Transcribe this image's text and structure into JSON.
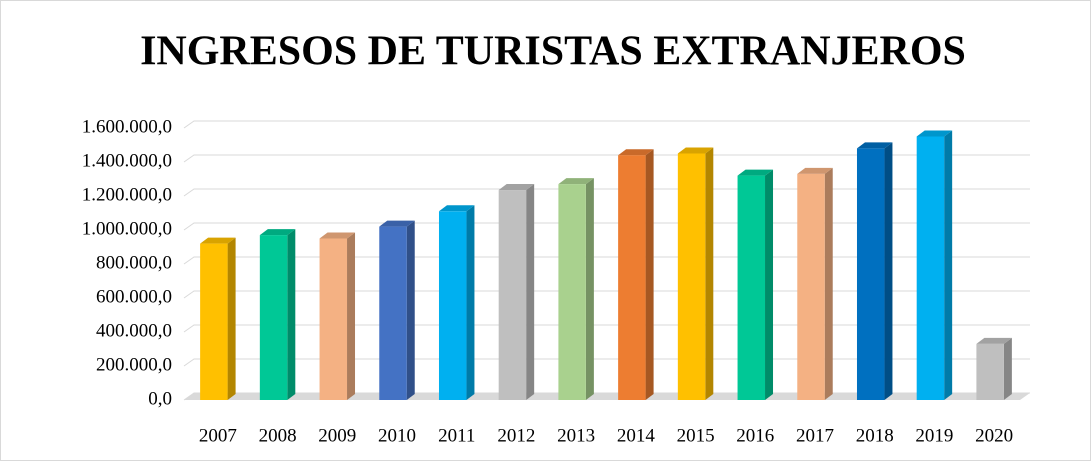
{
  "chart_data": {
    "type": "bar3d",
    "title": "INGRESOS DE TURISTAS EXTRANJEROS",
    "categories": [
      "2007",
      "2008",
      "2009",
      "2010",
      "2011",
      "2012",
      "2013",
      "2014",
      "2015",
      "2016",
      "2017",
      "2018",
      "2019",
      "2020"
    ],
    "values": [
      920000,
      970000,
      950000,
      1020000,
      1110000,
      1235000,
      1270000,
      1440000,
      1450000,
      1320000,
      1330000,
      1480000,
      1550000,
      330000
    ],
    "colors": [
      "#ffc000",
      "#00c896",
      "#f4b183",
      "#4472c4",
      "#00b0f0",
      "#bfbfbf",
      "#a9d18e",
      "#ed7d31",
      "#ffc000",
      "#00c896",
      "#f4b183",
      "#0070c0",
      "#00b0f0",
      "#bfbfbf"
    ],
    "ylim": [
      0,
      1600000
    ],
    "yticks": [
      {
        "value": 0,
        "label": "0,0"
      },
      {
        "value": 200000,
        "label": "200.000,0"
      },
      {
        "value": 400000,
        "label": "400.000,0"
      },
      {
        "value": 600000,
        "label": "600.000,0"
      },
      {
        "value": 800000,
        "label": "800.000,0"
      },
      {
        "value": 1000000,
        "label": "1.000.000,0"
      },
      {
        "value": 1200000,
        "label": "1.200.000,0"
      },
      {
        "value": 1400000,
        "label": "1.400.000,0"
      },
      {
        "value": 1600000,
        "label": "1.600.000,0"
      }
    ],
    "grid": true
  }
}
